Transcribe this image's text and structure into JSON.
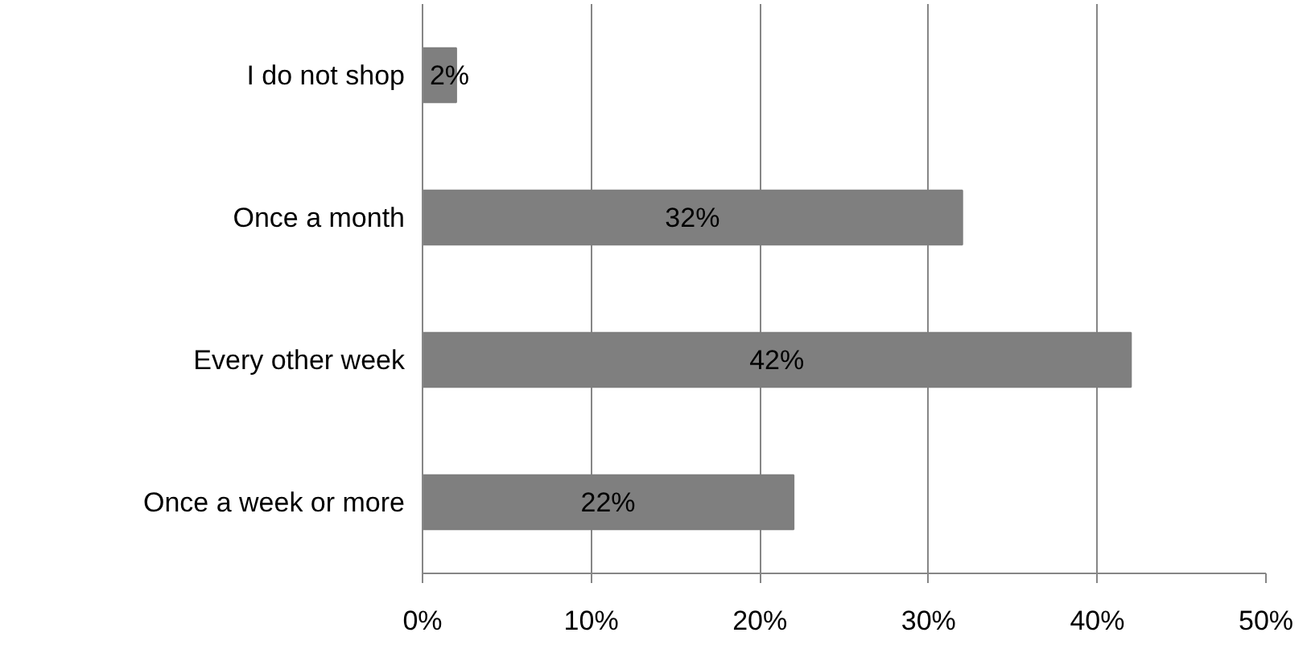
{
  "chart_data": {
    "type": "bar",
    "orientation": "horizontal",
    "categories": [
      "I do not shop",
      "Once a month",
      "Every other week",
      "Once a week or more"
    ],
    "values": [
      2,
      32,
      42,
      22
    ],
    "color": "#7f7f7f",
    "value_labels": [
      "2%",
      "32%",
      "42%",
      "22%"
    ],
    "xlim": [
      0,
      50
    ],
    "xticks": [
      {
        "value": 0,
        "label": "0%"
      },
      {
        "value": 10,
        "label": "10%"
      },
      {
        "value": 20,
        "label": "20%"
      },
      {
        "value": 30,
        "label": "30%"
      },
      {
        "value": 40,
        "label": "40%"
      },
      {
        "value": 50,
        "label": "50%"
      }
    ],
    "grid": "x"
  }
}
